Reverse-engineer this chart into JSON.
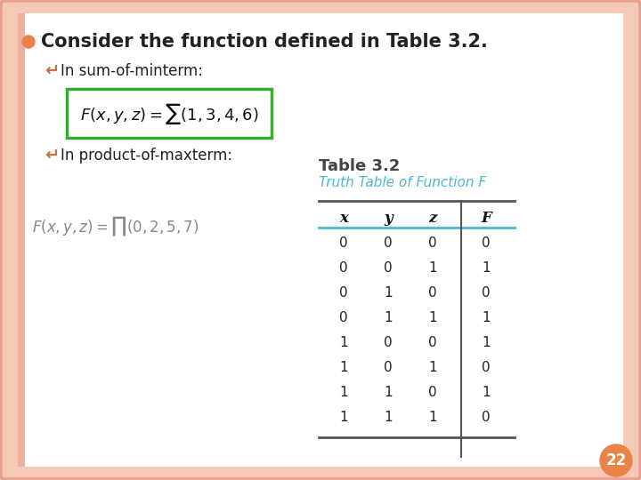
{
  "outer_bg": "#f5c8b8",
  "inner_bg": "#ffffff",
  "border_color": "#e8a090",
  "title": "Consider the function defined in Table 3.2.",
  "bullet1": "In sum-of-minterm:",
  "bullet2": "In product-of-maxterm:",
  "table_title": "Table 3.2",
  "table_subtitle": "Truth Table of Function F",
  "table_headers": [
    "x",
    "y",
    "z",
    "F"
  ],
  "table_data": [
    [
      0,
      0,
      0,
      0
    ],
    [
      0,
      0,
      1,
      1
    ],
    [
      0,
      1,
      0,
      0
    ],
    [
      0,
      1,
      1,
      1
    ],
    [
      1,
      0,
      0,
      1
    ],
    [
      1,
      0,
      1,
      0
    ],
    [
      1,
      1,
      0,
      1
    ],
    [
      1,
      1,
      1,
      0
    ]
  ],
  "page_num": "22",
  "page_circle_color": "#e8834a",
  "formula1_box_color": "#3aaa35",
  "table_header_line_color": "#4ab8d4",
  "main_bullet_color": "#e8834a",
  "sub_bullet_color": "#c87040",
  "title_color": "#222222",
  "table_title_color": "#444444",
  "table_subtitle_color": "#4ab8d4",
  "table_line_color": "#555555",
  "title_fontsize": 15,
  "bullet_fontsize": 12,
  "formula_fontsize": 11,
  "table_fontsize": 11
}
